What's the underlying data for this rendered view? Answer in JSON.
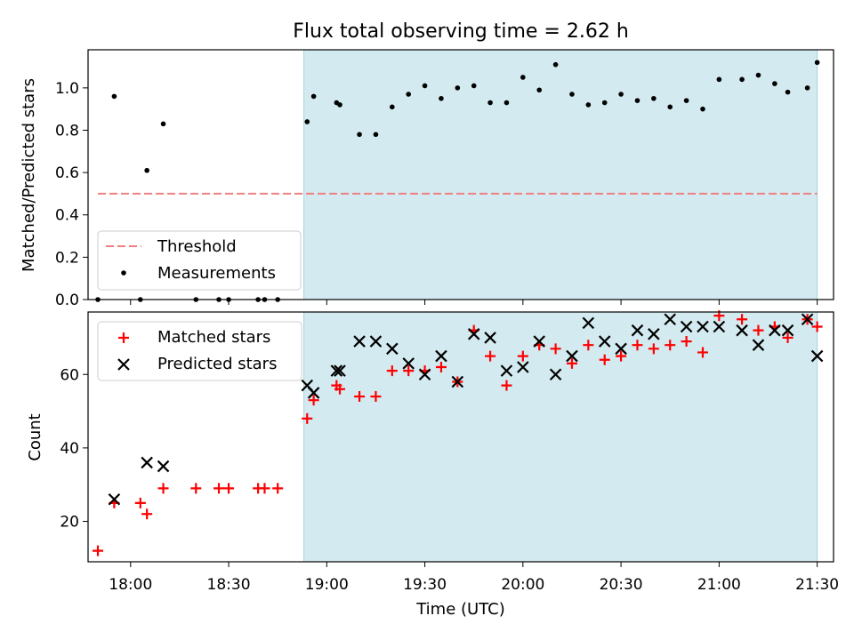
{
  "chart_data": {
    "title": "Flux total observing time = 2.62 h",
    "xlabel": "Time (UTC)",
    "x_ticks": [
      "18:00",
      "18:30",
      "19:00",
      "19:30",
      "20:00",
      "20:30",
      "21:00",
      "21:30"
    ],
    "x_range": [
      "17:47",
      "21:35"
    ],
    "observing_window": [
      "18:53",
      "21:30"
    ],
    "colors": {
      "observing_window": "#d3eaf0",
      "observing_window_edge": "#a8d4de",
      "threshold": "#f08080",
      "measurements": "#000000",
      "matched": "#ff0000",
      "predicted": "#000000"
    },
    "panels": [
      {
        "type": "scatter",
        "ylabel": "Matched/Predicted stars",
        "ylim": [
          0,
          1.18
        ],
        "y_ticks": [
          "0.0",
          "0.2",
          "0.4",
          "0.6",
          "0.8",
          "1.0"
        ],
        "legend": "lower-left",
        "threshold": {
          "name": "Threshold",
          "x": [
            "17:50",
            "21:30"
          ],
          "y": 0.5
        },
        "series": [
          {
            "name": "Measurements",
            "marker": "dot",
            "points": [
              [
                "17:50",
                0.0
              ],
              [
                "17:55",
                0.96
              ],
              [
                "18:03",
                0.0
              ],
              [
                "18:05",
                0.61
              ],
              [
                "18:10",
                0.83
              ],
              [
                "18:20",
                0.0
              ],
              [
                "18:27",
                0.0
              ],
              [
                "18:30",
                0.0
              ],
              [
                "18:39",
                0.0
              ],
              [
                "18:41",
                0.0
              ],
              [
                "18:45",
                0.0
              ],
              [
                "18:54",
                0.84
              ],
              [
                "18:56",
                0.96
              ],
              [
                "19:03",
                0.93
              ],
              [
                "19:04",
                0.92
              ],
              [
                "19:10",
                0.78
              ],
              [
                "19:15",
                0.78
              ],
              [
                "19:20",
                0.91
              ],
              [
                "19:25",
                0.97
              ],
              [
                "19:30",
                1.01
              ],
              [
                "19:35",
                0.95
              ],
              [
                "19:40",
                1.0
              ],
              [
                "19:45",
                1.01
              ],
              [
                "19:50",
                0.93
              ],
              [
                "19:55",
                0.93
              ],
              [
                "20:00",
                1.05
              ],
              [
                "20:05",
                0.99
              ],
              [
                "20:10",
                1.11
              ],
              [
                "20:15",
                0.97
              ],
              [
                "20:20",
                0.92
              ],
              [
                "20:25",
                0.93
              ],
              [
                "20:30",
                0.97
              ],
              [
                "20:35",
                0.94
              ],
              [
                "20:40",
                0.95
              ],
              [
                "20:45",
                0.91
              ],
              [
                "20:50",
                0.94
              ],
              [
                "20:55",
                0.9
              ],
              [
                "21:00",
                1.04
              ],
              [
                "21:07",
                1.04
              ],
              [
                "21:12",
                1.06
              ],
              [
                "21:17",
                1.02
              ],
              [
                "21:21",
                0.98
              ],
              [
                "21:27",
                1.0
              ],
              [
                "21:30",
                1.12
              ]
            ]
          }
        ]
      },
      {
        "type": "scatter",
        "ylabel": "Count",
        "ylim": [
          9,
          77
        ],
        "y_ticks": [
          "20",
          "40",
          "60"
        ],
        "legend": "upper-left",
        "series": [
          {
            "name": "Matched stars",
            "marker": "plus",
            "points": [
              [
                "17:50",
                12
              ],
              [
                "17:55",
                25
              ],
              [
                "18:03",
                25
              ],
              [
                "18:05",
                22
              ],
              [
                "18:10",
                29
              ],
              [
                "18:20",
                29
              ],
              [
                "18:27",
                29
              ],
              [
                "18:30",
                29
              ],
              [
                "18:39",
                29
              ],
              [
                "18:41",
                29
              ],
              [
                "18:45",
                29
              ],
              [
                "18:54",
                48
              ],
              [
                "18:56",
                53
              ],
              [
                "19:03",
                57
              ],
              [
                "19:04",
                56
              ],
              [
                "19:10",
                54
              ],
              [
                "19:15",
                54
              ],
              [
                "19:20",
                61
              ],
              [
                "19:25",
                61
              ],
              [
                "19:30",
                61
              ],
              [
                "19:35",
                62
              ],
              [
                "19:40",
                58
              ],
              [
                "19:45",
                72
              ],
              [
                "19:50",
                65
              ],
              [
                "19:55",
                57
              ],
              [
                "20:00",
                65
              ],
              [
                "20:05",
                68
              ],
              [
                "20:10",
                67
              ],
              [
                "20:15",
                63
              ],
              [
                "20:20",
                68
              ],
              [
                "20:25",
                64
              ],
              [
                "20:30",
                65
              ],
              [
                "20:35",
                68
              ],
              [
                "20:40",
                67
              ],
              [
                "20:45",
                68
              ],
              [
                "20:50",
                69
              ],
              [
                "20:55",
                66
              ],
              [
                "21:00",
                76
              ],
              [
                "21:07",
                75
              ],
              [
                "21:12",
                72
              ],
              [
                "21:17",
                73
              ],
              [
                "21:21",
                70
              ],
              [
                "21:27",
                75
              ],
              [
                "21:30",
                73
              ]
            ]
          },
          {
            "name": "Predicted stars",
            "marker": "x",
            "points": [
              [
                "17:55",
                26
              ],
              [
                "18:05",
                36
              ],
              [
                "18:10",
                35
              ],
              [
                "18:54",
                57
              ],
              [
                "18:56",
                55
              ],
              [
                "19:03",
                61
              ],
              [
                "19:04",
                61
              ],
              [
                "19:10",
                69
              ],
              [
                "19:15",
                69
              ],
              [
                "19:20",
                67
              ],
              [
                "19:25",
                63
              ],
              [
                "19:30",
                60
              ],
              [
                "19:35",
                65
              ],
              [
                "19:40",
                58
              ],
              [
                "19:45",
                71
              ],
              [
                "19:50",
                70
              ],
              [
                "19:55",
                61
              ],
              [
                "20:00",
                62
              ],
              [
                "20:05",
                69
              ],
              [
                "20:10",
                60
              ],
              [
                "20:15",
                65
              ],
              [
                "20:20",
                74
              ],
              [
                "20:25",
                69
              ],
              [
                "20:30",
                67
              ],
              [
                "20:35",
                72
              ],
              [
                "20:40",
                71
              ],
              [
                "20:45",
                75
              ],
              [
                "20:50",
                73
              ],
              [
                "20:55",
                73
              ],
              [
                "21:00",
                73
              ],
              [
                "21:07",
                72
              ],
              [
                "21:12",
                68
              ],
              [
                "21:17",
                72
              ],
              [
                "21:21",
                72
              ],
              [
                "21:27",
                75
              ],
              [
                "21:30",
                65
              ]
            ]
          }
        ]
      }
    ]
  }
}
